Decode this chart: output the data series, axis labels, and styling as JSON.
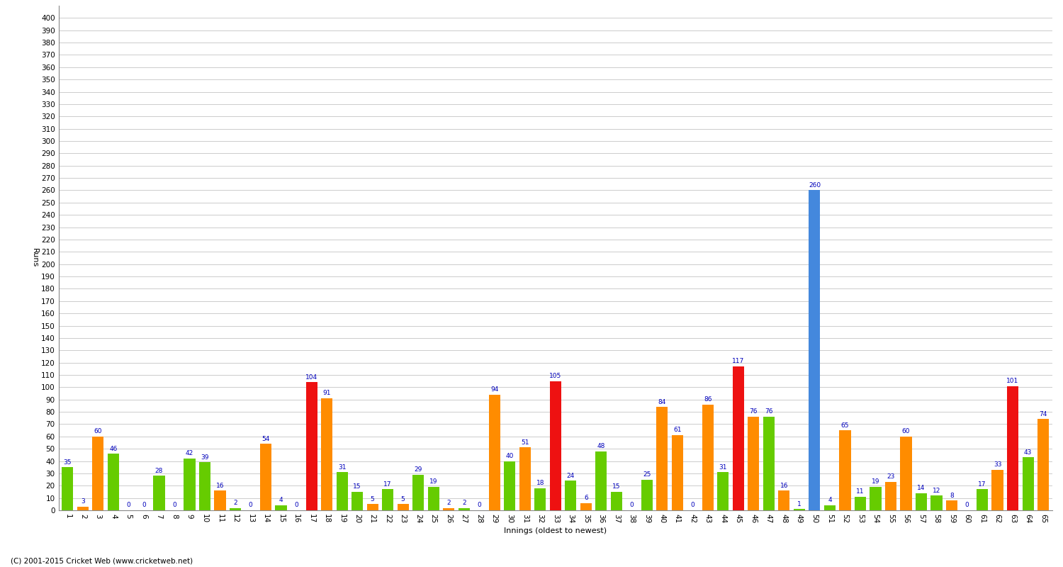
{
  "ylabel": "Runs",
  "xlabel": "Innings (oldest to newest)",
  "footer": "(C) 2001-2015 Cricket Web (www.cricketweb.net)",
  "ylim": [
    0,
    410
  ],
  "yticks": [
    0,
    10,
    20,
    30,
    40,
    50,
    60,
    70,
    80,
    90,
    100,
    110,
    120,
    130,
    140,
    150,
    160,
    170,
    180,
    190,
    200,
    210,
    220,
    230,
    240,
    250,
    260,
    270,
    280,
    290,
    300,
    310,
    320,
    330,
    340,
    350,
    360,
    370,
    380,
    390,
    400
  ],
  "innings": [
    {
      "x_label": "1",
      "score": 35,
      "color": "green"
    },
    {
      "x_label": "2",
      "score": 3,
      "color": "orange"
    },
    {
      "x_label": "3",
      "score": 60,
      "color": "orange"
    },
    {
      "x_label": "4",
      "score": 46,
      "color": "green"
    },
    {
      "x_label": "5",
      "score": 0,
      "color": "orange"
    },
    {
      "x_label": "6",
      "score": 0,
      "color": "green"
    },
    {
      "x_label": "7",
      "score": 28,
      "color": "green"
    },
    {
      "x_label": "8",
      "score": 0,
      "color": "orange"
    },
    {
      "x_label": "9",
      "score": 42,
      "color": "green"
    },
    {
      "x_label": "10",
      "score": 39,
      "color": "green"
    },
    {
      "x_label": "11",
      "score": 16,
      "color": "orange"
    },
    {
      "x_label": "12",
      "score": 2,
      "color": "green"
    },
    {
      "x_label": "13",
      "score": 0,
      "color": "orange"
    },
    {
      "x_label": "14",
      "score": 54,
      "color": "orange"
    },
    {
      "x_label": "15",
      "score": 4,
      "color": "green"
    },
    {
      "x_label": "16",
      "score": 0,
      "color": "orange"
    },
    {
      "x_label": "17",
      "score": 104,
      "color": "red"
    },
    {
      "x_label": "18",
      "score": 91,
      "color": "orange"
    },
    {
      "x_label": "19",
      "score": 31,
      "color": "green"
    },
    {
      "x_label": "20",
      "score": 15,
      "color": "green"
    },
    {
      "x_label": "21",
      "score": 5,
      "color": "orange"
    },
    {
      "x_label": "22",
      "score": 17,
      "color": "green"
    },
    {
      "x_label": "23",
      "score": 5,
      "color": "orange"
    },
    {
      "x_label": "24",
      "score": 29,
      "color": "green"
    },
    {
      "x_label": "25",
      "score": 19,
      "color": "green"
    },
    {
      "x_label": "26",
      "score": 2,
      "color": "orange"
    },
    {
      "x_label": "27",
      "score": 2,
      "color": "green"
    },
    {
      "x_label": "28",
      "score": 0,
      "color": "orange"
    },
    {
      "x_label": "29",
      "score": 94,
      "color": "orange"
    },
    {
      "x_label": "30",
      "score": 40,
      "color": "green"
    },
    {
      "x_label": "31",
      "score": 51,
      "color": "orange"
    },
    {
      "x_label": "32",
      "score": 18,
      "color": "green"
    },
    {
      "x_label": "33",
      "score": 105,
      "color": "red"
    },
    {
      "x_label": "34",
      "score": 24,
      "color": "green"
    },
    {
      "x_label": "35",
      "score": 6,
      "color": "orange"
    },
    {
      "x_label": "36",
      "score": 48,
      "color": "green"
    },
    {
      "x_label": "37",
      "score": 15,
      "color": "green"
    },
    {
      "x_label": "38",
      "score": 0,
      "color": "orange"
    },
    {
      "x_label": "39",
      "score": 25,
      "color": "green"
    },
    {
      "x_label": "40",
      "score": 84,
      "color": "orange"
    },
    {
      "x_label": "41",
      "score": 61,
      "color": "orange"
    },
    {
      "x_label": "42",
      "score": 0,
      "color": "green"
    },
    {
      "x_label": "43",
      "score": 86,
      "color": "orange"
    },
    {
      "x_label": "44",
      "score": 31,
      "color": "green"
    },
    {
      "x_label": "45",
      "score": 117,
      "color": "red"
    },
    {
      "x_label": "46",
      "score": 76,
      "color": "orange"
    },
    {
      "x_label": "47",
      "score": 76,
      "color": "green"
    },
    {
      "x_label": "48",
      "score": 16,
      "color": "orange"
    },
    {
      "x_label": "49",
      "score": 1,
      "color": "green"
    },
    {
      "x_label": "50",
      "score": 260,
      "color": "blue"
    },
    {
      "x_label": "51",
      "score": 4,
      "color": "green"
    },
    {
      "x_label": "52",
      "score": 65,
      "color": "orange"
    },
    {
      "x_label": "53",
      "score": 11,
      "color": "green"
    },
    {
      "x_label": "54",
      "score": 19,
      "color": "green"
    },
    {
      "x_label": "55",
      "score": 23,
      "color": "orange"
    },
    {
      "x_label": "56",
      "score": 60,
      "color": "orange"
    },
    {
      "x_label": "57",
      "score": 14,
      "color": "green"
    },
    {
      "x_label": "58",
      "score": 12,
      "color": "green"
    },
    {
      "x_label": "59",
      "score": 8,
      "color": "orange"
    },
    {
      "x_label": "60",
      "score": 0,
      "color": "green"
    },
    {
      "x_label": "61",
      "score": 17,
      "color": "green"
    },
    {
      "x_label": "62",
      "score": 33,
      "color": "orange"
    },
    {
      "x_label": "63",
      "score": 101,
      "color": "red"
    },
    {
      "x_label": "64",
      "score": 43,
      "color": "green"
    },
    {
      "x_label": "65",
      "score": 74,
      "color": "orange"
    }
  ],
  "colors": {
    "green": "#66CC00",
    "orange": "#FF8C00",
    "red": "#EE1111",
    "blue": "#4488DD"
  },
  "bg_color": "#FFFFFF",
  "grid_color": "#CCCCCC",
  "bar_width": 0.75,
  "label_color": "#0000BB",
  "label_fontsize": 6.5,
  "tick_fontsize": 7.5,
  "ylabel_fontsize": 8,
  "xlabel_fontsize": 8
}
